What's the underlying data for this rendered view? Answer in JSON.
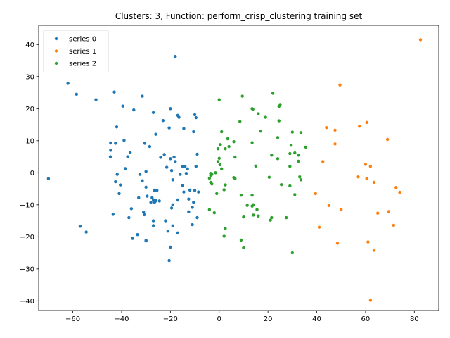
{
  "chart_data": {
    "type": "scatter",
    "title": "Clusters: 3, Function: perform_crisp_clustering training set",
    "xlabel": "",
    "ylabel": "",
    "xlim": [
      -74,
      90
    ],
    "ylim": [
      -43,
      46
    ],
    "xticks": [
      -60,
      -40,
      -20,
      0,
      20,
      40,
      60,
      80
    ],
    "yticks": [
      -40,
      -30,
      -20,
      -10,
      0,
      10,
      20,
      30,
      40
    ],
    "grid": false,
    "legend_position": "top-left",
    "series": [
      {
        "name": "series 0",
        "color": "#1f77b4",
        "points": [
          [
            -70,
            -1.8
          ],
          [
            -62,
            27.9
          ],
          [
            -58.5,
            24.5
          ],
          [
            -57,
            -16.7
          ],
          [
            -54.5,
            -18.5
          ],
          [
            -50.5,
            22.8
          ],
          [
            -44.5,
            9.3
          ],
          [
            -44.5,
            7
          ],
          [
            -44.6,
            5
          ],
          [
            -43.5,
            -13
          ],
          [
            -43,
            25.2
          ],
          [
            -42.5,
            -2.8
          ],
          [
            -42.5,
            9.2
          ],
          [
            -42,
            14.3
          ],
          [
            -41.8,
            -0.5
          ],
          [
            -41,
            -6.5
          ],
          [
            -40.5,
            -3.8
          ],
          [
            -39.5,
            20.8
          ],
          [
            -39,
            10.1
          ],
          [
            -38.5,
            1.3
          ],
          [
            -37.5,
            5
          ],
          [
            -37,
            -14
          ],
          [
            -36.5,
            6.3
          ],
          [
            -36,
            -11.2
          ],
          [
            -35.5,
            -20.5
          ],
          [
            -35,
            19.6
          ],
          [
            -33.5,
            -19.3
          ],
          [
            -33,
            -7.8
          ],
          [
            -32.5,
            -0.5
          ],
          [
            -31.5,
            23.9
          ],
          [
            -31.5,
            -2.5
          ],
          [
            -31,
            -12.3
          ],
          [
            -30.7,
            -13.1
          ],
          [
            -30.5,
            9.2
          ],
          [
            -30,
            -21.1
          ],
          [
            -30,
            -21.3
          ],
          [
            -30,
            0.4
          ],
          [
            -30,
            -4.5
          ],
          [
            -29.5,
            -7.3
          ],
          [
            -28.5,
            8.2
          ],
          [
            -28,
            -9.2
          ],
          [
            -27.5,
            -7.8
          ],
          [
            -27,
            -15
          ],
          [
            -27,
            -16.5
          ],
          [
            -27,
            18.8
          ],
          [
            -27,
            -8.5
          ],
          [
            -26.5,
            -5.6
          ],
          [
            -26.5,
            -9.2
          ],
          [
            -26.5,
            -5.4
          ],
          [
            -26,
            -8.8
          ],
          [
            -26,
            12
          ],
          [
            -26,
            -8.7
          ],
          [
            -25.5,
            -5.5
          ],
          [
            -24.5,
            -8.8
          ],
          [
            -24,
            4.8
          ],
          [
            -23,
            16.3
          ],
          [
            -22.5,
            5.7
          ],
          [
            -22,
            -15
          ],
          [
            -21.5,
            1.7
          ],
          [
            -21,
            -18.2
          ],
          [
            -20.5,
            -27.4
          ],
          [
            -20.5,
            14
          ],
          [
            -20,
            4.4
          ],
          [
            -20,
            -23.2
          ],
          [
            -20,
            20
          ],
          [
            -19.5,
            0.7
          ],
          [
            -19.5,
            -11
          ],
          [
            -19,
            -10
          ],
          [
            -19,
            -16.6
          ],
          [
            -19,
            -2.2
          ],
          [
            -18.5,
            4.9
          ],
          [
            -18,
            3.5
          ],
          [
            -18,
            36.3
          ],
          [
            -17,
            -8.5
          ],
          [
            -17,
            -18.8
          ],
          [
            -17,
            17.9
          ],
          [
            -16.5,
            17.3
          ],
          [
            -16,
            -0.5
          ],
          [
            -15,
            -4
          ],
          [
            -15,
            2
          ],
          [
            -14.5,
            13.8
          ],
          [
            -14.5,
            -6
          ],
          [
            -14,
            2
          ],
          [
            -13.5,
            -0.2
          ],
          [
            -13,
            1.2
          ],
          [
            -12.5,
            -8.2
          ],
          [
            -12.5,
            -12.2
          ],
          [
            -12,
            -5.4
          ],
          [
            -11,
            -16.2
          ],
          [
            -11,
            -10.8
          ],
          [
            -10.5,
            12.8
          ],
          [
            -10.5,
            -9.2
          ],
          [
            -10,
            18.1
          ],
          [
            -10,
            -5.5
          ],
          [
            -9.5,
            17.2
          ],
          [
            -9.5,
            2
          ],
          [
            -9,
            -14
          ],
          [
            -9,
            5.8
          ],
          [
            -8.5,
            -6
          ]
        ]
      },
      {
        "name": "series 1",
        "color": "#ff7f0e",
        "points": [
          [
            82.5,
            41.5
          ],
          [
            49.5,
            27.4
          ],
          [
            44,
            14.1
          ],
          [
            47.5,
            13.3
          ],
          [
            57.5,
            14.5
          ],
          [
            60.5,
            15.7
          ],
          [
            69,
            10.4
          ],
          [
            47.5,
            9
          ],
          [
            42.5,
            3.5
          ],
          [
            60,
            2.6
          ],
          [
            62,
            2
          ],
          [
            57,
            -1.3
          ],
          [
            60.5,
            -1.8
          ],
          [
            63.5,
            -3
          ],
          [
            72.5,
            -4.6
          ],
          [
            74,
            -6.1
          ],
          [
            39.5,
            -6.5
          ],
          [
            45,
            -10.2
          ],
          [
            50,
            -11.5
          ],
          [
            65,
            -12.6
          ],
          [
            69.5,
            -12.1
          ],
          [
            71.5,
            -16.4
          ],
          [
            41,
            -17
          ],
          [
            48.5,
            -22
          ],
          [
            61,
            -21.6
          ],
          [
            63.5,
            -24.2
          ],
          [
            62,
            -39.8
          ]
        ]
      },
      {
        "name": "series 2",
        "color": "#2ca02c",
        "points": [
          [
            0,
            22.8
          ],
          [
            9.5,
            23.9
          ],
          [
            22,
            24.8
          ],
          [
            25,
            21.3
          ],
          [
            24.5,
            20.7
          ],
          [
            13.5,
            20
          ],
          [
            13.8,
            19.8
          ],
          [
            16,
            18.4
          ],
          [
            19,
            17.3
          ],
          [
            24.5,
            16.2
          ],
          [
            8.5,
            16
          ],
          [
            30,
            12.7
          ],
          [
            33.5,
            12.5
          ],
          [
            1,
            12.8
          ],
          [
            17,
            13
          ],
          [
            3.5,
            10.6
          ],
          [
            6,
            9.7
          ],
          [
            24,
            11
          ],
          [
            13.5,
            9.4
          ],
          [
            29.5,
            8.6
          ],
          [
            35.5,
            8
          ],
          [
            0.5,
            8.8
          ],
          [
            -0.5,
            7.5
          ],
          [
            2.5,
            7.5
          ],
          [
            4,
            8.2
          ],
          [
            29,
            6
          ],
          [
            31,
            6.2
          ],
          [
            32.5,
            5.5
          ],
          [
            21.5,
            5.5
          ],
          [
            6.5,
            4.9
          ],
          [
            24,
            4.4
          ],
          [
            0,
            4.5
          ],
          [
            -0.5,
            3.5
          ],
          [
            32.5,
            3.6
          ],
          [
            0.3,
            2.5
          ],
          [
            1,
            1.2
          ],
          [
            15,
            2.1
          ],
          [
            29,
            2
          ],
          [
            -1.5,
            0
          ],
          [
            -3.5,
            -0.2
          ],
          [
            -3.5,
            -0.8
          ],
          [
            -3,
            -0.5
          ],
          [
            -4,
            -1.7
          ],
          [
            6,
            -1.5
          ],
          [
            20.5,
            -1.4
          ],
          [
            33,
            -1.3
          ],
          [
            6.5,
            -1.8
          ],
          [
            33.5,
            -2.2
          ],
          [
            -3.5,
            -3
          ],
          [
            -3,
            -3.5
          ],
          [
            2.5,
            -3.8
          ],
          [
            25.5,
            -3.7
          ],
          [
            29,
            -4.1
          ],
          [
            2,
            -5.3
          ],
          [
            -1,
            -6.5
          ],
          [
            9,
            -7
          ],
          [
            13.5,
            -7
          ],
          [
            31,
            -6.8
          ],
          [
            11.5,
            -10.2
          ],
          [
            13.5,
            -10.4
          ],
          [
            14,
            -10
          ],
          [
            15.5,
            -11.5
          ],
          [
            -4,
            -11.5
          ],
          [
            -2,
            -12.5
          ],
          [
            2.5,
            -17.4
          ],
          [
            10,
            -13.8
          ],
          [
            14,
            -13.2
          ],
          [
            16,
            -13.5
          ],
          [
            21.5,
            -14
          ],
          [
            21,
            -14.8
          ],
          [
            27.5,
            -14
          ],
          [
            2,
            -19.8
          ],
          [
            9,
            -21
          ],
          [
            10,
            -23.4
          ],
          [
            30,
            -25
          ]
        ]
      }
    ]
  }
}
